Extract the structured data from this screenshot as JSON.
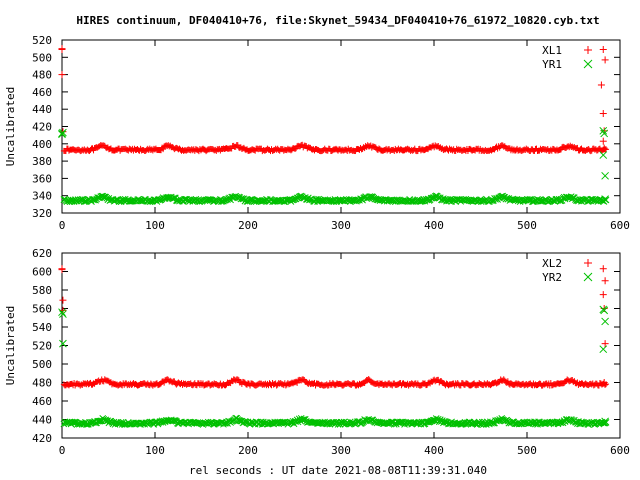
{
  "title": "HIRES continuum, DF040410+76, file:Skynet_59434_DF040410+76_61972_10820.cyb.txt",
  "xlabel": "rel seconds : UT date 2021-08-08T11:39:31.040",
  "colors": {
    "red": "#ff0000",
    "green": "#00c000",
    "axis": "#000000"
  },
  "chart_data": [
    {
      "type": "scatter",
      "ylabel": "Uncalibrated",
      "xlim": [
        0,
        600
      ],
      "ylim": [
        320,
        520
      ],
      "xticks": [
        "0",
        "100",
        "200",
        "300",
        "400",
        "500",
        "600"
      ],
      "yticks": [
        "320",
        "340",
        "360",
        "380",
        "400",
        "420",
        "440",
        "460",
        "480",
        "500",
        "520"
      ],
      "legend_position": "top-right",
      "grid": false,
      "series": [
        {
          "name": "XL1",
          "color": "#ff0000",
          "marker": "plus",
          "baseline": 393,
          "bump_amplitude": 4.5,
          "bump_centers": [
            44,
            115,
            187,
            258,
            330,
            402,
            473,
            545
          ],
          "x_range": [
            2,
            586
          ],
          "outliers": [
            [
              0,
              510
            ],
            [
              0,
              509
            ],
            [
              0,
              480
            ],
            [
              1,
              414
            ],
            [
              582,
              509
            ],
            [
              584,
              497
            ],
            [
              580,
              468
            ],
            [
              582,
              435
            ],
            [
              583,
              415
            ],
            [
              582,
              403
            ],
            [
              583,
              395
            ]
          ]
        },
        {
          "name": "YR1",
          "color": "#00c000",
          "marker": "cross",
          "baseline": 334.5,
          "bump_amplitude": 4,
          "bump_centers": [
            44,
            115,
            187,
            258,
            330,
            402,
            473,
            545
          ],
          "x_range": [
            2,
            586
          ],
          "outliers": [
            [
              0,
              412
            ],
            [
              1,
              413
            ],
            [
              0,
              411
            ],
            [
              582,
              415
            ],
            [
              583,
              412
            ],
            [
              582,
              387
            ],
            [
              584,
              363
            ],
            [
              584,
              336
            ]
          ]
        }
      ]
    },
    {
      "type": "scatter",
      "ylabel": "Uncalibrated",
      "xlim": [
        0,
        600
      ],
      "ylim": [
        420,
        620
      ],
      "xticks": [
        "0",
        "100",
        "200",
        "300",
        "400",
        "500",
        "600"
      ],
      "yticks": [
        "420",
        "440",
        "460",
        "480",
        "500",
        "520",
        "540",
        "560",
        "580",
        "600",
        "620"
      ],
      "legend_position": "top-right",
      "grid": false,
      "series": [
        {
          "name": "XL2",
          "color": "#ff0000",
          "marker": "plus",
          "baseline": 478,
          "bump_amplitude": 4.5,
          "bump_centers": [
            44,
            115,
            187,
            258,
            330,
            402,
            473,
            545
          ],
          "x_range": [
            2,
            586
          ],
          "outliers": [
            [
              0,
              603
            ],
            [
              0,
              602
            ],
            [
              1,
              569
            ],
            [
              1,
              558
            ],
            [
              582,
              603
            ],
            [
              584,
              590
            ],
            [
              582,
              575
            ],
            [
              583,
              560
            ],
            [
              584,
              522
            ],
            [
              583,
              480
            ]
          ]
        },
        {
          "name": "YR2",
          "color": "#00c000",
          "marker": "cross",
          "baseline": 436,
          "bump_amplitude": 4,
          "bump_centers": [
            44,
            115,
            187,
            258,
            330,
            402,
            473,
            545
          ],
          "x_range": [
            2,
            586
          ],
          "outliers": [
            [
              0,
              556
            ],
            [
              1,
              554
            ],
            [
              1,
              522
            ],
            [
              582,
              559
            ],
            [
              583,
              558
            ],
            [
              584,
              546
            ],
            [
              582,
              516
            ],
            [
              584,
              438
            ]
          ]
        }
      ]
    }
  ]
}
